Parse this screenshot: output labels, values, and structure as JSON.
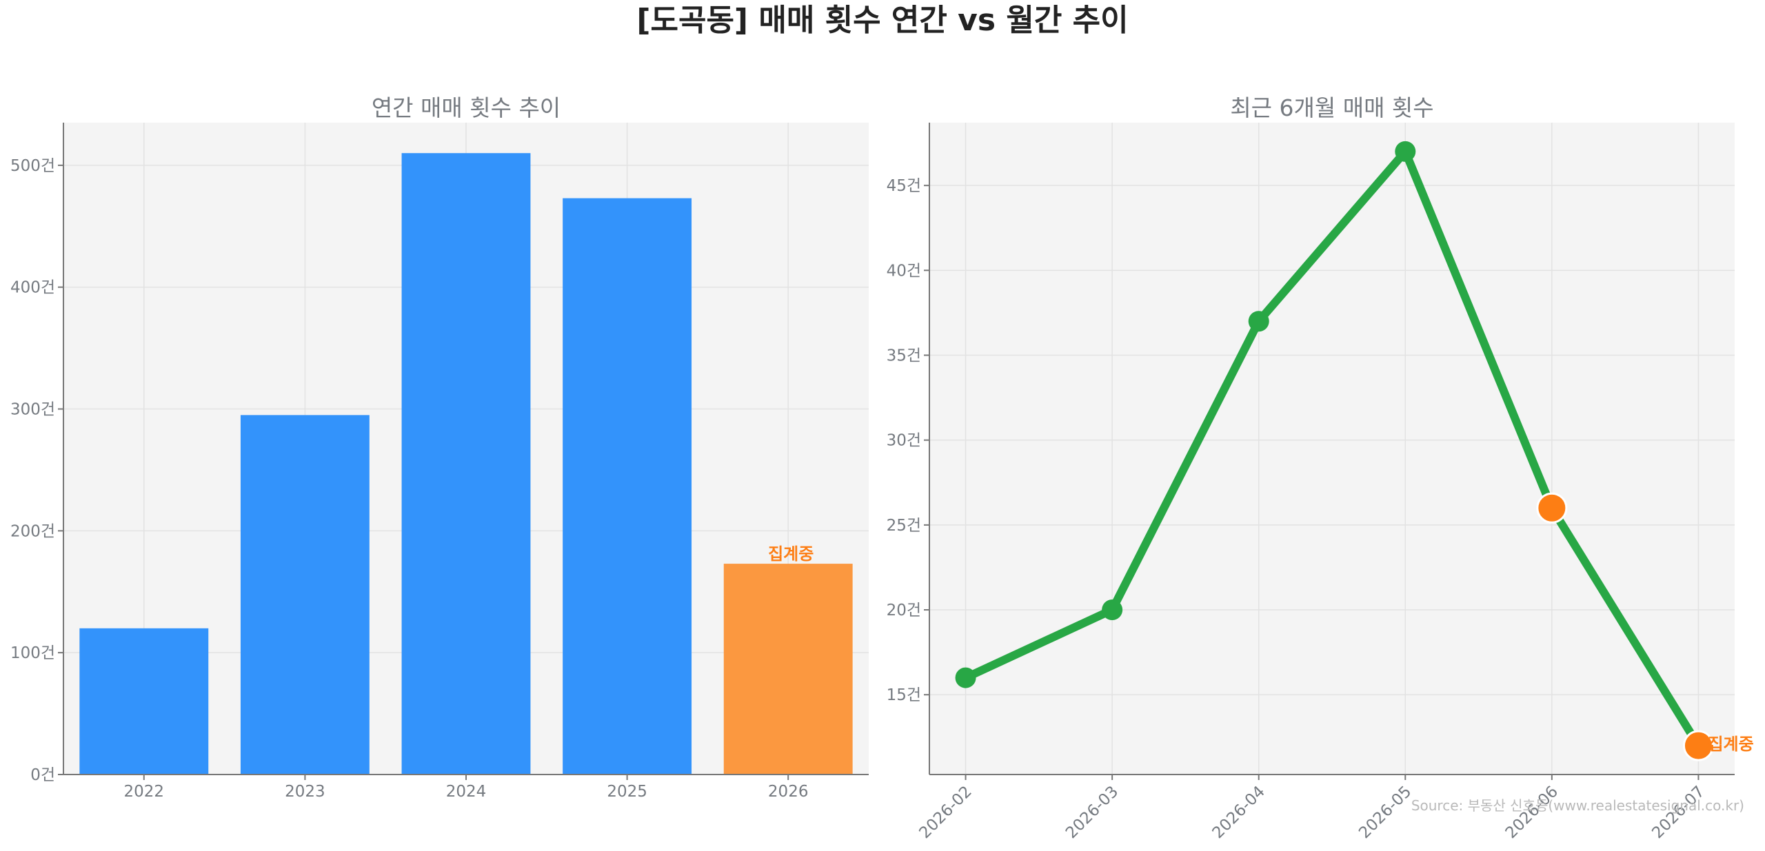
{
  "title": "[도곡동] 매매 횟수 연간 vs 월간 추이",
  "source": "Source: 부동산 신호등(www.realestatesignal.co.kr)",
  "colors": {
    "bar": "#3393fb",
    "bar_partial": "#fb9840",
    "line": "#28a745",
    "highlight": "#fd7e14",
    "plot_bg": "#f4f4f4",
    "grid": "#e2e2e2",
    "axis": "#777777",
    "tick_text": "#757a80"
  },
  "chart_data": [
    {
      "type": "bar",
      "title": "연간 매매 횟수 추이",
      "categories": [
        "2022",
        "2023",
        "2024",
        "2025",
        "2026"
      ],
      "values": [
        120,
        295,
        510,
        473,
        173
      ],
      "partial_index": 4,
      "partial_label": "집계중",
      "ylim": [
        0,
        535
      ],
      "yticks": [
        0,
        100,
        200,
        300,
        400,
        500
      ],
      "ytick_labels": [
        "0건",
        "100건",
        "200건",
        "300건",
        "400건",
        "500건"
      ],
      "grid": true
    },
    {
      "type": "line",
      "title": "최근 6개월 매매 횟수",
      "x": [
        "2026-02",
        "2026-03",
        "2026-04",
        "2026-05",
        "2026-06",
        "2026-07"
      ],
      "values": [
        16,
        20,
        37,
        47,
        26,
        12
      ],
      "highlight_indices": [
        4,
        5
      ],
      "partial_index": 5,
      "partial_label": "집계중",
      "ylim": [
        10.3,
        48.7
      ],
      "yticks": [
        15,
        20,
        25,
        30,
        35,
        40,
        45
      ],
      "ytick_labels": [
        "15건",
        "20건",
        "25건",
        "30건",
        "35건",
        "40건",
        "45건"
      ],
      "grid": true
    }
  ]
}
